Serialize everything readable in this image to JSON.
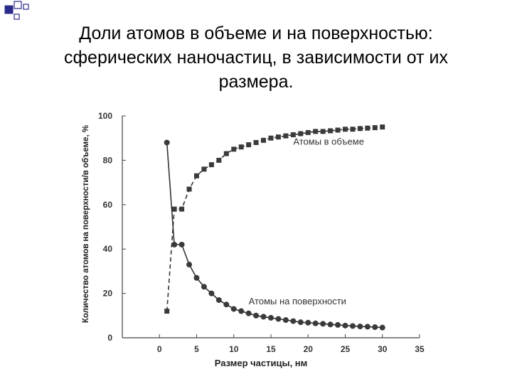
{
  "slide": {
    "title_lines": [
      "Доли атомов в объеме и на поверхностью:",
      "сферических наночастиц, в зависимости от их",
      "размера."
    ]
  },
  "chart_data": {
    "type": "line",
    "title": "",
    "xlabel": "Размер частицы, нм",
    "ylabel": "Количество атомов на поверхности/в объеме, %",
    "xlim": [
      -5,
      35
    ],
    "ylim": [
      0,
      100
    ],
    "x_ticks": [
      0,
      5,
      10,
      15,
      20,
      25,
      30,
      35
    ],
    "y_ticks": [
      0,
      20,
      40,
      60,
      80,
      100
    ],
    "grid": false,
    "series": [
      {
        "name": "Атомы в объеме",
        "label_at": [
          18,
          87
        ],
        "marker": "square",
        "line": "dashed",
        "x": [
          1,
          2,
          3,
          4,
          5,
          6,
          7,
          8,
          9,
          10,
          11,
          12,
          13,
          14,
          15,
          16,
          17,
          18,
          19,
          20,
          21,
          22,
          23,
          24,
          25,
          26,
          27,
          28,
          29,
          30
        ],
        "y": [
          12,
          58,
          58,
          67,
          73,
          76,
          78,
          80,
          83,
          85,
          86,
          87,
          88,
          89,
          90,
          90.5,
          91,
          91.5,
          92,
          92.5,
          93,
          93,
          93.3,
          93.6,
          94,
          94,
          94.3,
          94.5,
          94.7,
          95
        ]
      },
      {
        "name": "Атомы на поверхности",
        "label_at": [
          12,
          15
        ],
        "marker": "circle",
        "line": "solid",
        "x": [
          1,
          2,
          3,
          4,
          5,
          6,
          7,
          8,
          9,
          10,
          11,
          12,
          13,
          14,
          15,
          16,
          17,
          18,
          19,
          20,
          21,
          22,
          23,
          24,
          25,
          26,
          27,
          28,
          29,
          30
        ],
        "y": [
          88,
          42,
          42,
          33,
          27,
          23,
          20,
          17,
          15,
          13,
          12,
          11,
          10,
          9.5,
          9,
          8.5,
          8,
          7.5,
          7,
          6.8,
          6.5,
          6.3,
          6,
          5.8,
          5.5,
          5.3,
          5.1,
          5,
          4.8,
          4.6
        ]
      }
    ]
  }
}
